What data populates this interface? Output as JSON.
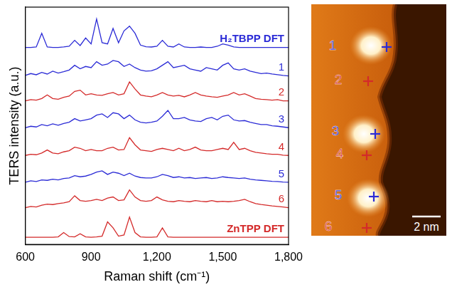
{
  "chart_data": {
    "type": "line",
    "xlabel": "Raman shift (cm⁻¹)",
    "ylabel": "TERS intensity (a.u.)",
    "x": [
      600,
      625,
      650,
      675,
      700,
      725,
      750,
      775,
      800,
      825,
      850,
      875,
      900,
      925,
      950,
      975,
      1000,
      1025,
      1050,
      1075,
      1100,
      1125,
      1150,
      1175,
      1200,
      1225,
      1250,
      1275,
      1300,
      1325,
      1350,
      1375,
      1400,
      1425,
      1450,
      1475,
      1500,
      1525,
      1550,
      1575,
      1600,
      1625,
      1650,
      1675,
      1700,
      1725,
      1750,
      1775,
      1800
    ],
    "xlim": [
      600,
      1800
    ],
    "xticks": [
      600,
      900,
      {
        "value": 1200,
        "label": "1,200"
      },
      {
        "value": 1500,
        "label": "1,500"
      },
      {
        "value": 1800,
        "label": "1,800"
      }
    ],
    "ylim": [
      0,
      10
    ],
    "tick_labels": "x",
    "grid": false,
    "series": [
      {
        "name": "H₂TBPP DFT",
        "color": "#2b2bd6",
        "values": [
          8.3,
          8.3,
          8.32,
          8.9,
          8.32,
          8.3,
          8.3,
          8.32,
          8.35,
          8.6,
          8.38,
          8.7,
          8.45,
          9.5,
          8.5,
          8.45,
          9.1,
          8.5,
          9.0,
          9.2,
          8.9,
          8.4,
          8.33,
          8.32,
          8.35,
          8.6,
          8.35,
          8.32,
          8.45,
          8.32,
          8.3,
          8.3,
          8.32,
          8.3,
          8.3,
          8.35,
          8.45,
          8.4,
          8.32,
          8.3,
          8.3,
          8.3,
          8.3,
          8.3,
          8.3,
          8.3,
          8.3,
          8.3,
          8.3
        ]
      },
      {
        "name": "1",
        "color": "#2b2bd6",
        "values": [
          7.12,
          7.2,
          7.15,
          7.25,
          7.18,
          7.3,
          7.22,
          7.28,
          7.35,
          7.55,
          7.4,
          7.5,
          7.45,
          7.7,
          7.55,
          7.6,
          7.75,
          7.7,
          7.5,
          7.6,
          7.45,
          7.35,
          7.3,
          7.32,
          7.4,
          7.55,
          7.7,
          7.45,
          7.5,
          7.55,
          7.4,
          7.35,
          7.3,
          7.45,
          7.4,
          7.35,
          7.55,
          7.65,
          7.4,
          7.35,
          7.4,
          7.3,
          7.25,
          7.2,
          7.22,
          7.18,
          7.15,
          7.12,
          7.1
        ]
      },
      {
        "name": "2",
        "color": "#d42a2a",
        "values": [
          6.05,
          6.1,
          6.08,
          6.15,
          6.3,
          6.15,
          6.12,
          6.2,
          6.25,
          6.45,
          6.5,
          6.3,
          6.35,
          6.3,
          6.28,
          6.35,
          6.4,
          6.3,
          6.35,
          6.85,
          6.55,
          6.3,
          6.25,
          6.22,
          6.3,
          6.4,
          6.3,
          6.25,
          6.28,
          6.22,
          6.3,
          6.4,
          6.3,
          6.25,
          6.22,
          6.2,
          6.25,
          6.3,
          6.4,
          6.3,
          6.35,
          6.25,
          6.15,
          6.12,
          6.1,
          6.08,
          6.1,
          6.05,
          6.05
        ]
      },
      {
        "name": "3",
        "color": "#2b2bd6",
        "values": [
          4.92,
          4.98,
          4.95,
          5.05,
          5.0,
          5.08,
          5.02,
          5.1,
          5.15,
          5.3,
          5.2,
          5.25,
          5.3,
          5.45,
          5.5,
          5.35,
          5.55,
          5.5,
          5.3,
          5.45,
          5.25,
          5.15,
          5.12,
          5.15,
          5.2,
          5.4,
          5.65,
          5.3,
          5.3,
          5.35,
          5.25,
          5.2,
          5.18,
          5.3,
          5.35,
          5.25,
          5.4,
          5.45,
          5.25,
          5.2,
          5.22,
          5.15,
          5.1,
          5.05,
          5.05,
          5.0,
          4.98,
          4.95,
          4.92
        ]
      },
      {
        "name": "4",
        "color": "#d42a2a",
        "values": [
          3.75,
          3.8,
          3.78,
          3.85,
          3.98,
          3.85,
          3.82,
          3.9,
          3.95,
          4.1,
          4.05,
          3.95,
          4.0,
          3.95,
          3.95,
          4.05,
          4.1,
          3.98,
          4.0,
          4.5,
          4.2,
          3.98,
          3.95,
          3.92,
          4.0,
          4.05,
          4.0,
          3.95,
          4.05,
          3.95,
          4.0,
          4.1,
          3.98,
          3.95,
          3.95,
          4.0,
          4.05,
          4.0,
          4.3,
          4.0,
          4.05,
          3.95,
          3.88,
          3.85,
          3.82,
          3.8,
          3.8,
          3.76,
          3.75
        ]
      },
      {
        "name": "5",
        "color": "#2b2bd6",
        "values": [
          2.62,
          2.68,
          2.65,
          2.72,
          2.7,
          2.75,
          2.72,
          2.78,
          2.8,
          2.9,
          2.85,
          2.88,
          2.95,
          3.05,
          3.1,
          2.95,
          3.05,
          3.0,
          2.9,
          3.0,
          2.88,
          2.82,
          2.8,
          2.8,
          2.85,
          2.95,
          2.9,
          2.82,
          2.85,
          2.8,
          2.82,
          2.78,
          2.8,
          2.82,
          2.78,
          2.8,
          2.85,
          2.82,
          2.8,
          2.78,
          2.8,
          2.75,
          2.72,
          2.7,
          2.68,
          2.66,
          2.65,
          2.63,
          2.62
        ]
      },
      {
        "name": "6",
        "color": "#d42a2a",
        "values": [
          1.55,
          1.6,
          1.58,
          1.65,
          1.7,
          1.68,
          1.72,
          1.75,
          1.8,
          2.05,
          1.85,
          1.82,
          1.85,
          1.9,
          1.85,
          1.95,
          2.0,
          1.85,
          1.88,
          2.3,
          2.0,
          1.85,
          1.82,
          1.85,
          2.0,
          1.88,
          1.82,
          1.8,
          1.85,
          1.82,
          1.8,
          1.85,
          1.82,
          1.8,
          1.85,
          1.8,
          1.82,
          1.8,
          1.82,
          1.85,
          1.9,
          1.8,
          1.72,
          1.68,
          1.65,
          1.62,
          1.6,
          1.58,
          1.55
        ]
      },
      {
        "name": "ZnTPP DFT",
        "color": "#d42a2a",
        "values": [
          0.3,
          0.3,
          0.3,
          0.3,
          0.3,
          0.3,
          0.32,
          0.5,
          0.33,
          0.32,
          0.45,
          0.32,
          0.3,
          0.32,
          0.35,
          0.95,
          0.7,
          0.35,
          0.4,
          1.15,
          0.5,
          0.32,
          0.3,
          0.3,
          0.32,
          0.7,
          0.32,
          0.3,
          0.3,
          0.3,
          0.3,
          0.3,
          0.3,
          0.3,
          0.3,
          0.3,
          0.3,
          0.3,
          0.3,
          0.3,
          0.3,
          0.3,
          0.3,
          0.3,
          0.3,
          0.3,
          0.3,
          0.3,
          0.3
        ]
      }
    ]
  },
  "image": {
    "type": "stm_image",
    "points": [
      {
        "label": "1",
        "color": "#2b2bd6"
      },
      {
        "label": "2",
        "color": "#d42a2a"
      },
      {
        "label": "3",
        "color": "#2b2bd6"
      },
      {
        "label": "4",
        "color": "#d42a2a"
      },
      {
        "label": "5",
        "color": "#2b2bd6"
      },
      {
        "label": "6",
        "color": "#d42a2a"
      }
    ],
    "scale_bar": "2 nm"
  }
}
